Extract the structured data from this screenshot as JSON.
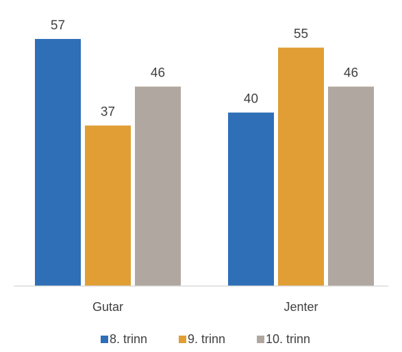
{
  "chart_data": {
    "type": "bar",
    "categories": [
      "Gutar",
      "Jenter"
    ],
    "series": [
      {
        "name": "8. trinn",
        "values": [
          57,
          40
        ],
        "color": "#2e6fb7"
      },
      {
        "name": "9. trinn",
        "values": [
          37,
          55
        ],
        "color": "#e09e34"
      },
      {
        "name": "10. trinn",
        "values": [
          46,
          46
        ],
        "color": "#b0a8a0"
      }
    ],
    "title": "",
    "xlabel": "",
    "ylabel": "",
    "ylim": [
      0,
      60
    ],
    "grid": false,
    "data_labels": true,
    "legend_position": "bottom"
  }
}
